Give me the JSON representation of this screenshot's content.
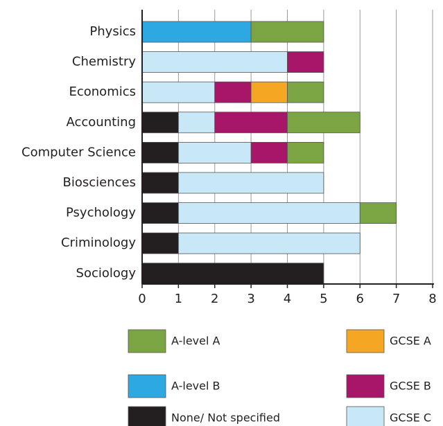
{
  "chart_data": {
    "type": "stacked-barh",
    "categories": [
      "Physics",
      "Chemistry",
      "Economics",
      "Accounting",
      "Computer Science",
      "Biosciences",
      "Psychology",
      "Criminology",
      "Sociology"
    ],
    "series": [
      {
        "name": "A-level A",
        "color": "#7ba443",
        "values": [
          2,
          0,
          1,
          2,
          1,
          0,
          1,
          0,
          0
        ]
      },
      {
        "name": "A-level B",
        "color": "#2ea8e0",
        "values": [
          3,
          0,
          0,
          0,
          0,
          0,
          0,
          0,
          0
        ]
      },
      {
        "name": "None/ Not specified",
        "color": "#231f20",
        "values": [
          0,
          0,
          0,
          1,
          1,
          1,
          1,
          1,
          5
        ]
      },
      {
        "name": "GCSE A",
        "color": "#f5a623",
        "values": [
          0,
          0,
          1,
          0,
          0,
          0,
          0,
          0,
          0
        ]
      },
      {
        "name": "GCSE B",
        "color": "#a8166a",
        "values": [
          0,
          1,
          1,
          2,
          1,
          0,
          0,
          0,
          0
        ]
      },
      {
        "name": "GCSE C",
        "color": "#c8e8f8",
        "values": [
          0,
          4,
          2,
          1,
          2,
          4,
          5,
          5,
          0
        ]
      }
    ],
    "xlim": [
      0,
      8
    ],
    "xticks": [
      0,
      1,
      2,
      3,
      4,
      5,
      6,
      7,
      8
    ],
    "grid": true
  }
}
